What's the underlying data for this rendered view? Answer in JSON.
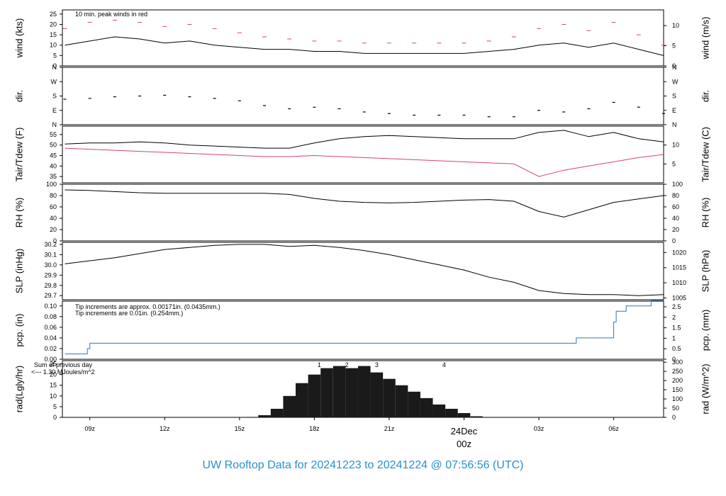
{
  "footer_title": "UW Rooftop Data for 20241223  to  20241224 @ 07:56:56  (UTC)",
  "colors": {
    "red": "#d6446a",
    "blue": "#2f78c4",
    "purple": "#a023c8",
    "title": "#2a8fd0"
  },
  "chart_data": {
    "type": "line",
    "time_axis": {
      "range_hours_utc": [
        7.9,
        32.0
      ],
      "tick_hours": [
        9,
        12,
        15,
        18,
        21,
        27,
        30
      ],
      "tick_labels": [
        "09z",
        "12z",
        "15z",
        "18z",
        "21z",
        "03z",
        "06z"
      ],
      "date_marker": {
        "hour": 24,
        "date_label": "24Dec",
        "time_label": "00z"
      }
    },
    "panels": [
      {
        "id": "wind",
        "ylabel_left": "wind (kts)",
        "ylabel_right": "wind (m/s)",
        "ylim": [
          0,
          27
        ],
        "yticks_left": [
          0,
          5,
          10,
          15,
          20,
          25
        ],
        "yticks_right": [
          0,
          5,
          10
        ],
        "right_scale_factor": 0.5144,
        "annotation": "10 min. peak winds in red",
        "series": [
          {
            "type": "line",
            "color": "#000000",
            "x": [
              8.0,
              9.0,
              10.0,
              11.0,
              12.0,
              13.0,
              14.0,
              15.0,
              16.0,
              17.0,
              18.0,
              19.0,
              20.0,
              21.0,
              22.0,
              23.0,
              24.0,
              25.0,
              26.0,
              27.0,
              28.0,
              29.0,
              30.0,
              31.0,
              32.0
            ],
            "y": [
              10,
              12,
              14,
              13,
              11,
              12,
              10,
              9,
              8,
              8,
              7,
              7,
              6,
              6,
              6,
              6,
              6,
              7,
              8,
              10,
              11,
              9,
              11,
              8,
              5
            ]
          },
          {
            "type": "peak-dashes",
            "color": "#d6446a",
            "x": [
              8.0,
              9.0,
              10.0,
              11.0,
              12.0,
              13.0,
              14.0,
              15.0,
              16.0,
              17.0,
              18.0,
              19.0,
              20.0,
              21.0,
              22.0,
              23.0,
              24.0,
              25.0,
              26.0,
              27.0,
              28.0,
              29.0,
              30.0,
              31.0,
              32.0
            ],
            "y": [
              18,
              21,
              22,
              21,
              19,
              20,
              18,
              16,
              14,
              13,
              12,
              12,
              11,
              11,
              11,
              11,
              11,
              12,
              14,
              18,
              20,
              17,
              21,
              15,
              10
            ]
          }
        ]
      },
      {
        "id": "dir",
        "ylabel_left": "dir.",
        "ylabel_right": "dir.",
        "ylim": [
          0,
          360
        ],
        "yticks_left": [
          0,
          90,
          180,
          270,
          360
        ],
        "ytick_labels": [
          "N",
          "E",
          "S",
          "W",
          "N"
        ],
        "series": [
          {
            "type": "points",
            "color": "#000000",
            "x": [
              8,
              9,
              10,
              11,
              12,
              13,
              14,
              15,
              16,
              17,
              18,
              19,
              20,
              21,
              22,
              23,
              24,
              25,
              26,
              27,
              28,
              29,
              30,
              31,
              32
            ],
            "y": [
              160,
              165,
              175,
              180,
              185,
              175,
              165,
              150,
              120,
              100,
              110,
              100,
              80,
              70,
              60,
              60,
              60,
              50,
              50,
              90,
              80,
              100,
              140,
              110,
              70
            ]
          }
        ]
      },
      {
        "id": "temp",
        "ylabel_left": "Tair/Tdew (F)",
        "ylabel_right": "Tair/Tdew (C)",
        "ylim": [
          32,
          59
        ],
        "yticks_left": [
          35,
          40,
          45,
          50,
          55
        ],
        "yticks_right": [
          5,
          10
        ],
        "series": [
          {
            "name": "",
            "type": "line",
            "color": "#000000",
            "x": [
              8,
              9,
              10,
              11,
              12,
              13,
              14,
              15,
              16,
              17,
              18,
              19,
              20,
              21,
              22,
              23,
              24,
              25,
              26,
              27,
              28,
              29,
              30,
              31,
              32
            ],
            "y": [
              50.5,
              51,
              51,
              51.5,
              51,
              50,
              49.5,
              49,
              48.5,
              48.5,
              51,
              53,
              54,
              54.5,
              54,
              53.5,
              53,
              53,
              53,
              56,
              57,
              54,
              56,
              53,
              51.5
            ]
          },
          {
            "name": "",
            "type": "line",
            "color": "#d6446a",
            "x": [
              8,
              9,
              10,
              11,
              12,
              13,
              14,
              15,
              16,
              17,
              18,
              19,
              20,
              21,
              22,
              23,
              24,
              25,
              26,
              27,
              28,
              29,
              30,
              31,
              32
            ],
            "y": [
              48.5,
              48,
              47.5,
              47,
              46.5,
              46,
              45.5,
              45,
              44.5,
              44.5,
              45,
              44.5,
              44,
              43.5,
              43,
              42.5,
              42,
              41.5,
              41,
              35,
              38,
              40,
              42,
              44,
              45.5
            ]
          }
        ]
      },
      {
        "id": "rh",
        "ylabel_left": "RH (%)",
        "ylabel_right": "RH (%)",
        "ylim": [
          0,
          100
        ],
        "yticks_left": [
          0,
          20,
          40,
          60,
          80,
          100
        ],
        "yticks_right": [
          0,
          20,
          40,
          60,
          80,
          100
        ],
        "series": [
          {
            "type": "line",
            "color": "#000000",
            "x": [
              8,
              9,
              10,
              11,
              12,
              13,
              14,
              15,
              16,
              17,
              18,
              19,
              20,
              21,
              22,
              23,
              24,
              25,
              26,
              27,
              28,
              29,
              30,
              31,
              32
            ],
            "y": [
              90,
              89,
              87,
              85,
              84,
              84,
              84,
              84,
              84,
              82,
              75,
              70,
              68,
              67,
              68,
              70,
              72,
              73,
              70,
              52,
              42,
              55,
              68,
              74,
              80
            ]
          }
        ]
      },
      {
        "id": "slp",
        "ylabel_left": "SLP (inHg)",
        "ylabel_right": "SLP (hPa)",
        "ylim": [
          29.66,
          30.22
        ],
        "yticks_left": [
          29.7,
          29.8,
          29.9,
          30.0,
          30.1,
          30.2
        ],
        "ytick_labels_left": [
          "29.7",
          "29.8",
          "29.9",
          "30.0",
          "30.1",
          "30.2"
        ],
        "yticks_right_hpa": [
          1005,
          1010,
          1015,
          1020
        ],
        "series": [
          {
            "type": "line",
            "color": "#000000",
            "x": [
              8,
              9,
              10,
              11,
              12,
              13,
              14,
              15,
              16,
              17,
              18,
              19,
              20,
              21,
              22,
              23,
              24,
              25,
              26,
              27,
              28,
              29,
              30,
              31,
              32
            ],
            "y": [
              30.01,
              30.04,
              30.07,
              30.11,
              30.15,
              30.17,
              30.19,
              30.2,
              30.2,
              30.18,
              30.19,
              30.17,
              30.14,
              30.1,
              30.05,
              30.0,
              29.95,
              29.88,
              29.83,
              29.75,
              29.72,
              29.71,
              29.71,
              29.7,
              29.71
            ]
          }
        ]
      },
      {
        "id": "pcp",
        "ylabel_left": "pcp. (in)",
        "ylabel_right": "pcp. (mm)",
        "ylim": [
          0,
          0.109
        ],
        "yticks_left": [
          0,
          0.02,
          0.04,
          0.06,
          0.08,
          0.1
        ],
        "ytick_labels_left": [
          "0.00",
          "0.02",
          "0.04",
          "0.06",
          "0.08",
          "0.10"
        ],
        "yticks_right_mm": [
          0,
          0.5,
          1,
          1.5,
          2,
          2.5
        ],
        "ytick_labels_right": [
          "0",
          "0.5",
          "1",
          "1.5",
          "2",
          "2.5"
        ],
        "annotations": [
          {
            "text": "Tip increments are approx. 0.00171in. (0.0435mm.)",
            "color": "#d6446a"
          },
          {
            "text": "Tip increments are 0.01in. (0.254mm.)",
            "color": "#2f78c4"
          }
        ],
        "series": [
          {
            "type": "step",
            "color": "#2f78c4",
            "x": [
              8.0,
              8.9,
              8.9,
              9.0,
              9.0,
              28.5,
              28.5,
              30.0,
              30.0,
              30.1,
              30.1,
              30.5,
              30.5,
              31.5,
              31.5,
              32.0
            ],
            "y": [
              0.01,
              0.01,
              0.02,
              0.02,
              0.03,
              0.03,
              0.04,
              0.04,
              0.07,
              0.07,
              0.09,
              0.09,
              0.1,
              0.1,
              0.11,
              0.11
            ]
          }
        ]
      },
      {
        "id": "rad",
        "ylabel_left": "rad(Lgly/hr)",
        "ylabel_right": "rad (W/m^2)",
        "ylim": [
          0,
          26.5
        ],
        "yticks_left": [
          0,
          5,
          10,
          15,
          20,
          25
        ],
        "yticks_right_wm2": [
          0,
          50,
          100,
          150,
          200,
          250,
          300
        ],
        "annotations": [
          {
            "text": "Sum of previous day",
            "color": "#a023c8"
          },
          {
            "text": "<--- 1.30 MJoules/m^2",
            "color": "#a023c8"
          }
        ],
        "hour_markers": [
          {
            "label": "1",
            "hour": 18.2
          },
          {
            "label": "2",
            "hour": 19.3
          },
          {
            "label": "3",
            "hour": 20.5
          },
          {
            "label": "4",
            "hour": 23.2
          }
        ],
        "series": [
          {
            "type": "bars",
            "color": "#1a1a1a",
            "x": [
              15.5,
              16,
              16.5,
              17,
              17.5,
              18,
              18.5,
              19,
              19.5,
              20,
              20.5,
              21,
              21.5,
              22,
              22.5,
              23,
              23.5,
              24,
              24.5,
              25
            ],
            "y": [
              0.2,
              1,
              4,
              10,
              16,
              20,
              23,
              24,
              23,
              24,
              21,
              18,
              15,
              12,
              9,
              6,
              4,
              2,
              0.5,
              0
            ]
          }
        ]
      }
    ]
  }
}
